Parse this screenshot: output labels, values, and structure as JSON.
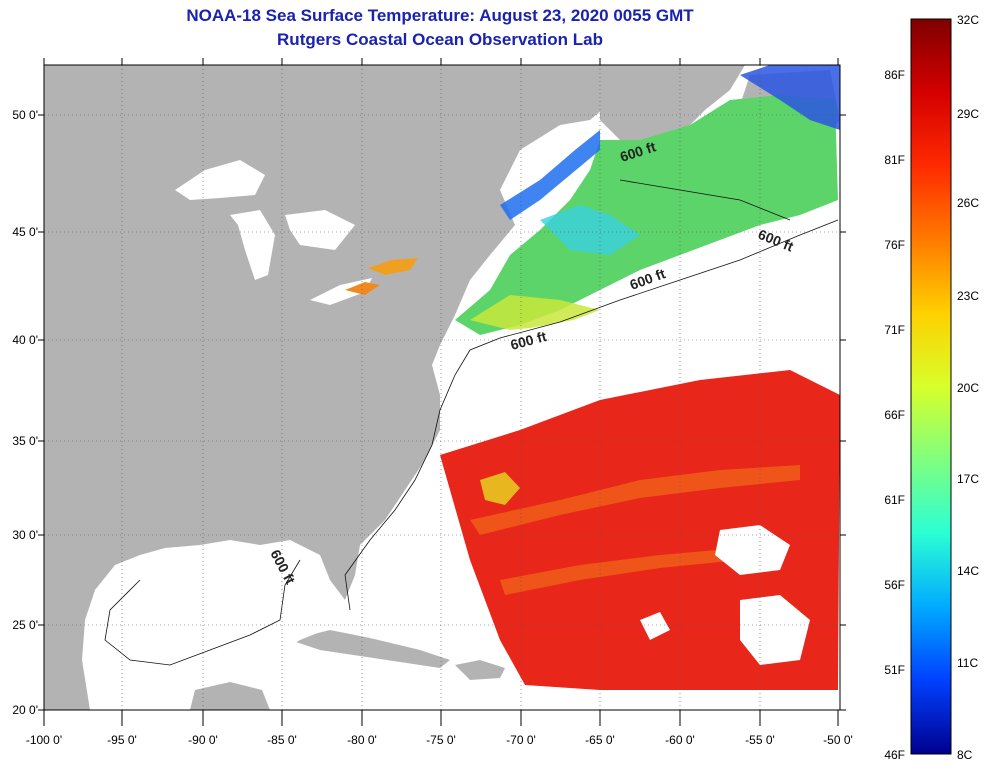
{
  "header": {
    "title": "NOAA-18 Sea Surface Temperature:  August 23, 2020 0055 GMT",
    "subtitle": "Rutgers Coastal Ocean Observation Lab"
  },
  "map": {
    "lon_ticks": [
      "-100 0'",
      "-95 0'",
      "-90 0'",
      "-85 0'",
      "-80 0'",
      "-75 0'",
      "-70 0'",
      "-65 0'",
      "-60 0'",
      "-55 0'",
      "-50 0'"
    ],
    "lat_ticks": [
      "50 0'",
      "45 0'",
      "40 0'",
      "35 0'",
      "30 0'",
      "25 0'",
      "20 0'"
    ],
    "contour_label": "600 ft",
    "colors": {
      "land": "#b3b3b3",
      "ocean_nodata": "#ffffff",
      "hot": "#e8261a",
      "warm": "#f06018"
    }
  },
  "colorbar": {
    "celsius": [
      "32C",
      "29C",
      "26C",
      "23C",
      "20C",
      "17C",
      "14C",
      "11C",
      "8C"
    ],
    "fahrenheit": [
      "86F",
      "81F",
      "76F",
      "71F",
      "66F",
      "61F",
      "56F",
      "51F",
      "46F"
    ],
    "gradient": [
      "#7f0000",
      "#d40000",
      "#ff2a00",
      "#ff7a00",
      "#ffd000",
      "#d8ff2a",
      "#7fff7f",
      "#2affd4",
      "#00aaff",
      "#0040ff",
      "#00008f"
    ]
  }
}
